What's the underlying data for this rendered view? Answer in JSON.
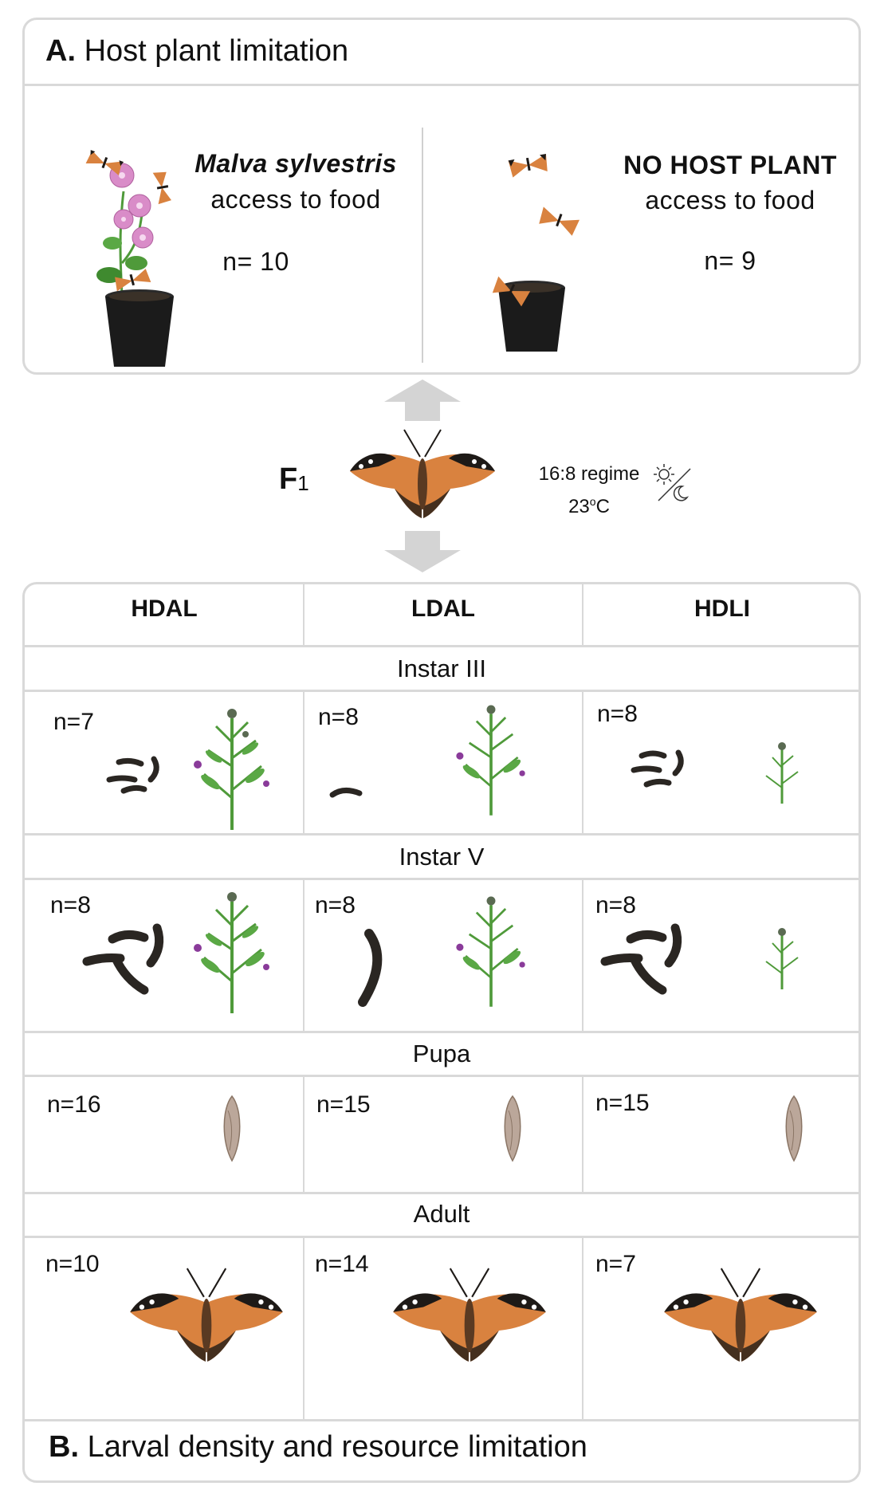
{
  "panel_a": {
    "letter": "A.",
    "title": "Host plant limitation",
    "left": {
      "plant": "Malva sylvestris",
      "food": "access to food",
      "n": "n= 10"
    },
    "right": {
      "plant": "NO HOST PLANT",
      "food": "access to food",
      "n": "n= 9"
    }
  },
  "generation": {
    "label": "F",
    "sub": "1"
  },
  "conditions": {
    "regime": "16:8 regime",
    "temp_value": "23",
    "temp_deg": "o",
    "temp_unit": "C"
  },
  "panel_b": {
    "letter": "B.",
    "title": "Larval density and resource limitation",
    "columns": [
      "HDAL",
      "LDAL",
      "HDLI"
    ],
    "stages": [
      {
        "name": "Instar III",
        "n": [
          "n=7",
          "n=8",
          "n=8"
        ]
      },
      {
        "name": "Instar V",
        "n": [
          "n=8",
          "n=8",
          "n=8"
        ]
      },
      {
        "name": "Pupa",
        "n": [
          "n=16",
          "n=15",
          "n=15"
        ]
      },
      {
        "name": "Adult",
        "n": [
          "n=10",
          "n=14",
          "n=7"
        ]
      }
    ]
  },
  "colors": {
    "border": "#d9d9d9",
    "arrow": "#d4d4d4",
    "butterfly_orange": "#d9823f",
    "butterfly_dark": "#1e1a17",
    "larva": "#2a2622",
    "plant_green": "#4f9a3a",
    "thistle_purple": "#8a3b9a",
    "mallow_pink": "#d98cc8",
    "pot": "#1b1b1b",
    "pupa": "#bba79a"
  }
}
